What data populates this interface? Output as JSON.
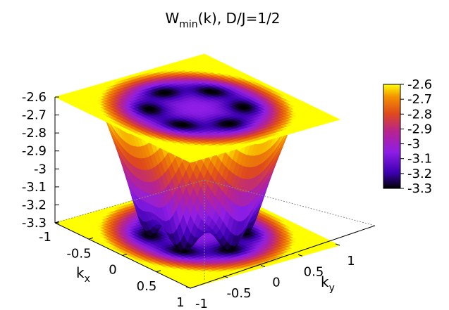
{
  "chart_data": {
    "type": "surface",
    "title_main": "W",
    "title_sub": "min",
    "title_rest": "(k), D/J=1/2",
    "x_label_main": "k",
    "x_label_sub": "x",
    "y_label_main": "k",
    "y_label_sub": "y",
    "x_range": [
      -1,
      1
    ],
    "y_range": [
      -1,
      1
    ],
    "z_range": [
      -3.3,
      -2.6
    ],
    "x_ticks": [
      "-1",
      "-0.5",
      "0",
      "0.5",
      "1"
    ],
    "y_ticks": [
      "-1",
      "-0.5",
      "0",
      "0.5",
      "1"
    ],
    "z_ticks": [
      "-2.6",
      "-2.7",
      "-2.8",
      "-2.9",
      "-3",
      "-3.1",
      "-3.2",
      "-3.3"
    ],
    "colorbar_ticks": [
      "-2.6",
      "-2.7",
      "-2.8",
      "-2.9",
      "-3",
      "-3.1",
      "-3.2",
      "-3.3"
    ],
    "colormap": [
      "#000000",
      "#3c00b0",
      "#8e1ee6",
      "#b8248d",
      "#df4a1b",
      "#f39100",
      "#ffff00"
    ],
    "surface_features": {
      "minimum_value": -3.3,
      "maximum_value": -2.6,
      "minima_ring_radius": 0.5,
      "minima_count": 6,
      "center_value": -3.05
    },
    "projections": [
      "top",
      "bottom"
    ]
  }
}
